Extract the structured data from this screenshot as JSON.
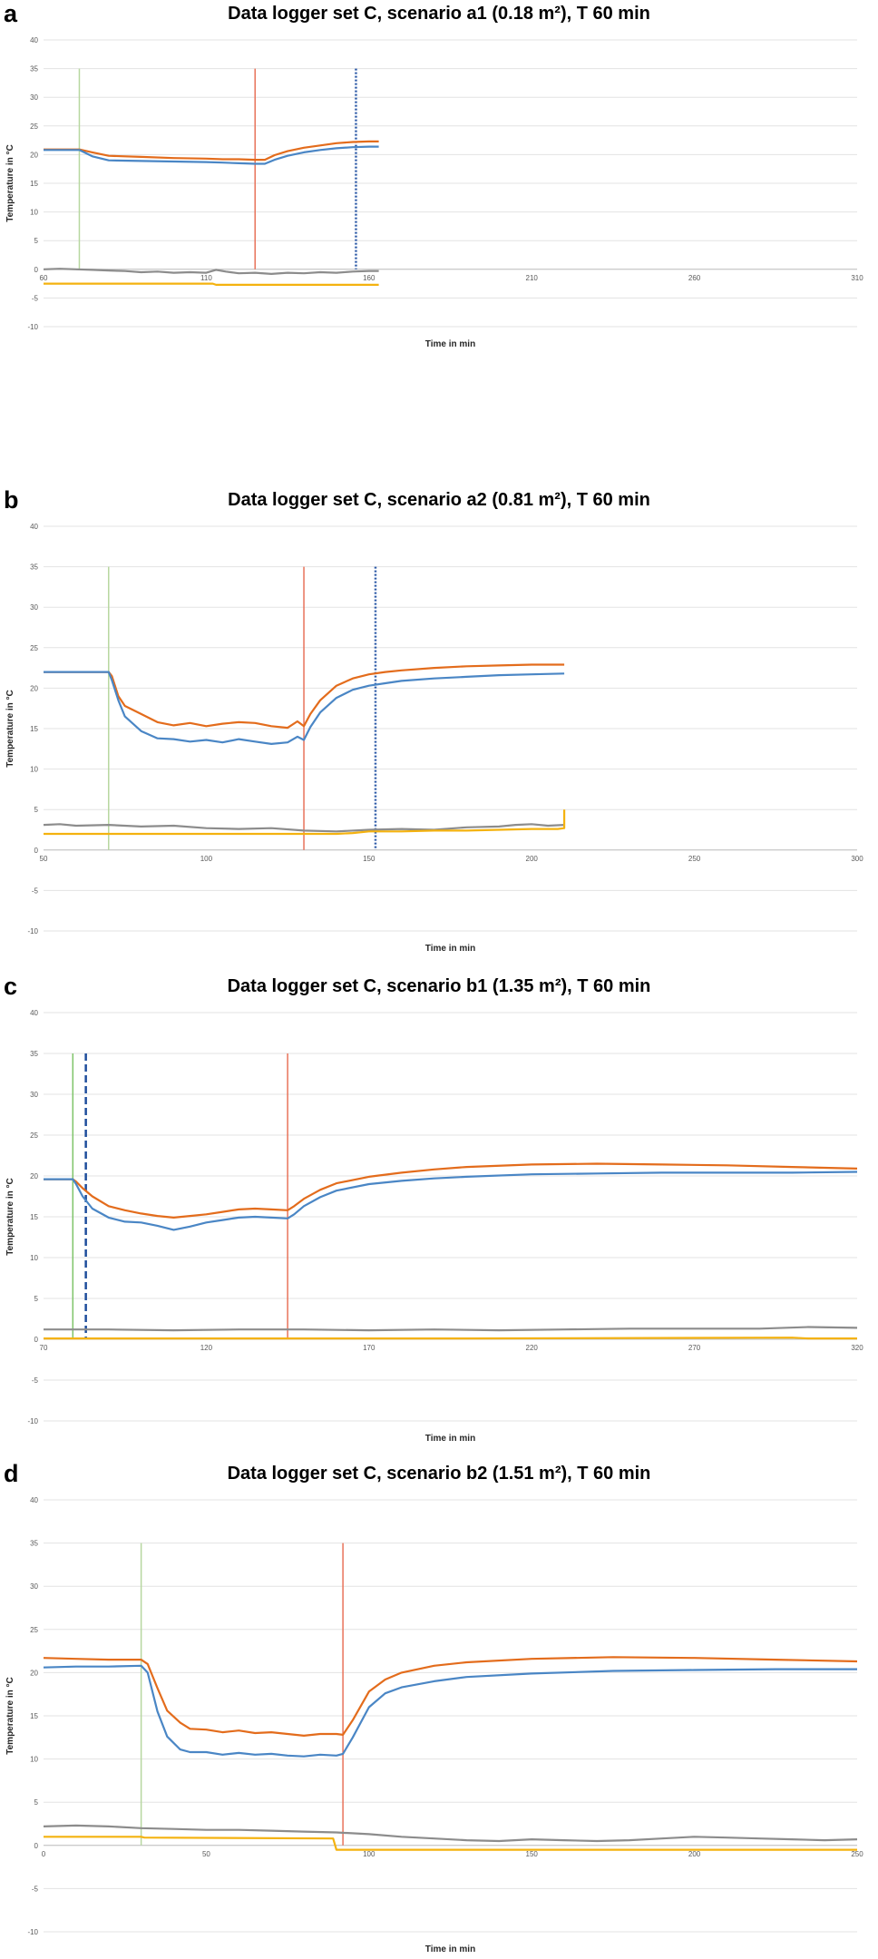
{
  "chart_data": [
    {
      "type": "line",
      "panel_letter": "a",
      "title": "Data logger set C, scenario a1 (0.18 m²), T 60 min",
      "xlabel": "Time in min",
      "ylabel": "Temperature in °C",
      "xlim": [
        60,
        310
      ],
      "ylim": [
        -10,
        40
      ],
      "xticks": [
        60,
        110,
        160,
        210,
        260,
        310
      ],
      "yticks": [
        -10,
        -5,
        0,
        5,
        10,
        15,
        20,
        25,
        30,
        35,
        40
      ],
      "grid": true,
      "legend": "none",
      "vlines": [
        {
          "x": 71,
          "color": "#b7d7a0",
          "style": "solid"
        },
        {
          "x": 125,
          "color": "#e8735a",
          "style": "solid"
        },
        {
          "x": 156,
          "color": "#2e5ba8",
          "style": "dotted"
        }
      ],
      "series": [
        {
          "color": "#e36c1c",
          "x": [
            60,
            67,
            71,
            75,
            80,
            90,
            100,
            110,
            115,
            120,
            125,
            128,
            131,
            135,
            140,
            145,
            150,
            155,
            160,
            163
          ],
          "y": [
            20.9,
            20.9,
            20.9,
            20.4,
            19.8,
            19.6,
            19.4,
            19.3,
            19.2,
            19.2,
            19.1,
            19.1,
            19.9,
            20.6,
            21.2,
            21.6,
            22.0,
            22.2,
            22.3,
            22.3
          ]
        },
        {
          "color": "#4a86c5",
          "x": [
            60,
            67,
            71,
            75,
            80,
            90,
            100,
            110,
            115,
            120,
            125,
            128,
            131,
            135,
            140,
            145,
            150,
            155,
            160,
            163
          ],
          "y": [
            20.8,
            20.8,
            20.8,
            19.7,
            19.0,
            18.9,
            18.8,
            18.7,
            18.6,
            18.5,
            18.4,
            18.4,
            19.1,
            19.8,
            20.4,
            20.8,
            21.1,
            21.3,
            21.4,
            21.4
          ]
        },
        {
          "color": "#8c8c8c",
          "x": [
            60,
            65,
            70,
            75,
            80,
            85,
            90,
            95,
            100,
            105,
            110,
            113,
            116,
            120,
            125,
            130,
            135,
            140,
            145,
            150,
            155,
            160,
            163
          ],
          "y": [
            0.0,
            0.1,
            0.0,
            -0.1,
            -0.2,
            -0.3,
            -0.5,
            -0.4,
            -0.6,
            -0.5,
            -0.6,
            -0.1,
            -0.4,
            -0.7,
            -0.6,
            -0.8,
            -0.6,
            -0.7,
            -0.5,
            -0.6,
            -0.4,
            -0.3,
            -0.3
          ]
        },
        {
          "color": "#f4b20f",
          "x": [
            60,
            112,
            113,
            163
          ],
          "y": [
            -2.5,
            -2.5,
            -2.7,
            -2.7
          ]
        }
      ]
    },
    {
      "type": "line",
      "panel_letter": "b",
      "title": "Data logger set C, scenario a2 (0.81 m²), T 60 min",
      "xlabel": "Time in min",
      "ylabel": "Temperature in °C",
      "xlim": [
        50,
        300
      ],
      "ylim": [
        -10,
        40
      ],
      "xticks": [
        50,
        100,
        150,
        200,
        250,
        300
      ],
      "yticks": [
        -10,
        -5,
        0,
        5,
        10,
        15,
        20,
        25,
        30,
        35,
        40
      ],
      "grid": true,
      "legend": "none",
      "vlines": [
        {
          "x": 70,
          "color": "#b7d7a0",
          "style": "solid"
        },
        {
          "x": 130,
          "color": "#e8735a",
          "style": "solid"
        },
        {
          "x": 152,
          "color": "#2e5ba8",
          "style": "dotted"
        }
      ],
      "series": [
        {
          "color": "#e36c1c",
          "x": [
            50,
            60,
            70,
            71,
            73,
            75,
            80,
            85,
            90,
            95,
            100,
            105,
            110,
            115,
            120,
            125,
            128,
            130,
            132,
            135,
            140,
            145,
            150,
            155,
            160,
            170,
            180,
            190,
            200,
            210
          ],
          "y": [
            22,
            22,
            22,
            21.5,
            19,
            17.8,
            16.8,
            15.8,
            15.4,
            15.7,
            15.3,
            15.6,
            15.8,
            15.7,
            15.3,
            15.1,
            15.9,
            15.3,
            16.8,
            18.5,
            20.3,
            21.2,
            21.7,
            22,
            22.2,
            22.5,
            22.7,
            22.8,
            22.9,
            22.9
          ]
        },
        {
          "color": "#4a86c5",
          "x": [
            50,
            60,
            70,
            71,
            73,
            75,
            80,
            85,
            90,
            95,
            100,
            105,
            110,
            115,
            120,
            125,
            128,
            130,
            132,
            135,
            140,
            145,
            150,
            155,
            160,
            170,
            180,
            190,
            200,
            210
          ],
          "y": [
            22,
            22,
            22,
            21,
            18.5,
            16.5,
            14.7,
            13.8,
            13.7,
            13.4,
            13.6,
            13.3,
            13.7,
            13.4,
            13.1,
            13.3,
            14,
            13.6,
            15.2,
            17,
            18.8,
            19.8,
            20.3,
            20.6,
            20.9,
            21.2,
            21.4,
            21.6,
            21.7,
            21.8
          ]
        },
        {
          "color": "#8c8c8c",
          "x": [
            50,
            55,
            60,
            70,
            80,
            90,
            100,
            110,
            120,
            130,
            140,
            150,
            160,
            170,
            180,
            190,
            195,
            200,
            205,
            210
          ],
          "y": [
            3.1,
            3.2,
            3.0,
            3.1,
            2.9,
            3.0,
            2.7,
            2.6,
            2.7,
            2.4,
            2.3,
            2.5,
            2.6,
            2.5,
            2.8,
            2.9,
            3.1,
            3.2,
            3.0,
            3.1
          ]
        },
        {
          "color": "#f4b20f",
          "x": [
            50,
            140,
            145,
            150,
            160,
            170,
            180,
            190,
            200,
            208,
            210,
            210
          ],
          "y": [
            2.0,
            2.0,
            2.1,
            2.3,
            2.3,
            2.4,
            2.4,
            2.5,
            2.6,
            2.6,
            2.7,
            5.0
          ]
        }
      ]
    },
    {
      "type": "line",
      "panel_letter": "c",
      "title": "Data logger set C, scenario b1 (1.35 m²), T 60 min",
      "xlabel": "Time in min",
      "ylabel": "Temperature in °C",
      "xlim": [
        70,
        320
      ],
      "ylim": [
        -10,
        40
      ],
      "xticks": [
        70,
        120,
        170,
        220,
        270,
        320
      ],
      "yticks": [
        -10,
        -5,
        0,
        5,
        10,
        15,
        20,
        25,
        30,
        35,
        40
      ],
      "grid": true,
      "legend": "none",
      "vlines": [
        {
          "x": 79,
          "color": "#7fc46a",
          "style": "solid"
        },
        {
          "x": 83,
          "color": "#1f4e9c",
          "style": "dashed"
        },
        {
          "x": 145,
          "color": "#e8735a",
          "style": "solid"
        }
      ],
      "series": [
        {
          "color": "#e36c1c",
          "x": [
            70,
            75,
            79,
            80,
            82,
            85,
            90,
            95,
            100,
            105,
            110,
            115,
            120,
            125,
            130,
            135,
            140,
            145,
            147,
            150,
            155,
            160,
            170,
            180,
            190,
            200,
            220,
            240,
            260,
            280,
            300,
            320
          ],
          "y": [
            19.6,
            19.6,
            19.6,
            19.3,
            18.5,
            17.5,
            16.3,
            15.8,
            15.4,
            15.1,
            14.9,
            15.1,
            15.3,
            15.6,
            15.9,
            16.0,
            15.9,
            15.8,
            16.3,
            17.2,
            18.3,
            19.1,
            19.9,
            20.4,
            20.8,
            21.1,
            21.4,
            21.5,
            21.4,
            21.3,
            21.1,
            20.9
          ]
        },
        {
          "color": "#4a86c5",
          "x": [
            70,
            75,
            79,
            80,
            82,
            85,
            90,
            95,
            100,
            105,
            110,
            115,
            120,
            125,
            130,
            135,
            140,
            145,
            147,
            150,
            155,
            160,
            170,
            180,
            190,
            200,
            220,
            240,
            260,
            280,
            300,
            320
          ],
          "y": [
            19.6,
            19.6,
            19.6,
            19.0,
            17.5,
            16.0,
            14.9,
            14.4,
            14.3,
            13.9,
            13.4,
            13.8,
            14.3,
            14.6,
            14.9,
            15.0,
            14.9,
            14.8,
            15.3,
            16.3,
            17.4,
            18.2,
            19.0,
            19.4,
            19.7,
            19.9,
            20.2,
            20.3,
            20.4,
            20.4,
            20.4,
            20.5
          ]
        },
        {
          "color": "#8c8c8c",
          "x": [
            70,
            90,
            110,
            130,
            150,
            170,
            190,
            210,
            230,
            250,
            270,
            290,
            305,
            320
          ],
          "y": [
            1.2,
            1.2,
            1.1,
            1.2,
            1.2,
            1.1,
            1.2,
            1.1,
            1.2,
            1.3,
            1.3,
            1.3,
            1.5,
            1.4
          ]
        },
        {
          "color": "#f4b20f",
          "x": [
            70,
            200,
            300,
            305,
            320
          ],
          "y": [
            0.1,
            0.1,
            0.2,
            0.1,
            0.1
          ]
        }
      ]
    },
    {
      "type": "line",
      "panel_letter": "d",
      "title": "Data logger set C, scenario b2 (1.51 m²), T 60 min",
      "xlabel": "Time in min",
      "ylabel": "Temperature in °C",
      "xlim": [
        0,
        250
      ],
      "ylim": [
        -10,
        40
      ],
      "xticks": [
        0,
        50,
        100,
        150,
        200,
        250
      ],
      "yticks": [
        -10,
        -5,
        0,
        5,
        10,
        15,
        20,
        25,
        30,
        35,
        40
      ],
      "grid": true,
      "legend": "none",
      "vlines": [
        {
          "x": 30,
          "color": "#b7d7a0",
          "style": "solid"
        },
        {
          "x": 92,
          "color": "#e8735a",
          "style": "solid"
        }
      ],
      "series": [
        {
          "color": "#e36c1c",
          "x": [
            0,
            10,
            20,
            30,
            32,
            35,
            38,
            42,
            45,
            50,
            55,
            60,
            65,
            70,
            75,
            80,
            85,
            90,
            92,
            95,
            100,
            105,
            110,
            120,
            130,
            150,
            175,
            200,
            225,
            250
          ],
          "y": [
            21.7,
            21.6,
            21.5,
            21.5,
            21.0,
            18.2,
            15.6,
            14.2,
            13.5,
            13.4,
            13.1,
            13.3,
            13.0,
            13.1,
            12.9,
            12.7,
            12.9,
            12.9,
            12.8,
            14.5,
            17.8,
            19.2,
            20.0,
            20.8,
            21.2,
            21.6,
            21.8,
            21.7,
            21.5,
            21.3
          ]
        },
        {
          "color": "#4a86c5",
          "x": [
            0,
            10,
            20,
            30,
            32,
            35,
            38,
            42,
            45,
            50,
            55,
            60,
            65,
            70,
            75,
            80,
            85,
            90,
            92,
            95,
            100,
            105,
            110,
            120,
            130,
            150,
            175,
            200,
            225,
            250
          ],
          "y": [
            20.6,
            20.7,
            20.7,
            20.8,
            20.0,
            15.5,
            12.6,
            11.1,
            10.8,
            10.8,
            10.5,
            10.7,
            10.5,
            10.6,
            10.4,
            10.3,
            10.5,
            10.4,
            10.6,
            12.5,
            16.0,
            17.6,
            18.3,
            19.0,
            19.5,
            19.9,
            20.2,
            20.3,
            20.4,
            20.4
          ]
        },
        {
          "color": "#8c8c8c",
          "x": [
            0,
            10,
            20,
            30,
            40,
            50,
            60,
            70,
            80,
            90,
            100,
            110,
            120,
            130,
            140,
            150,
            160,
            170,
            180,
            190,
            200,
            210,
            220,
            230,
            240,
            250
          ],
          "y": [
            2.2,
            2.3,
            2.2,
            2.0,
            1.9,
            1.8,
            1.8,
            1.7,
            1.6,
            1.5,
            1.3,
            1.0,
            0.8,
            0.6,
            0.5,
            0.7,
            0.6,
            0.5,
            0.6,
            0.8,
            1.0,
            0.9,
            0.8,
            0.7,
            0.6,
            0.7
          ]
        },
        {
          "color": "#f4b20f",
          "x": [
            0,
            30,
            31,
            89,
            90,
            250
          ],
          "y": [
            1.0,
            1.0,
            0.9,
            0.8,
            -0.5,
            -0.5
          ]
        }
      ]
    }
  ]
}
